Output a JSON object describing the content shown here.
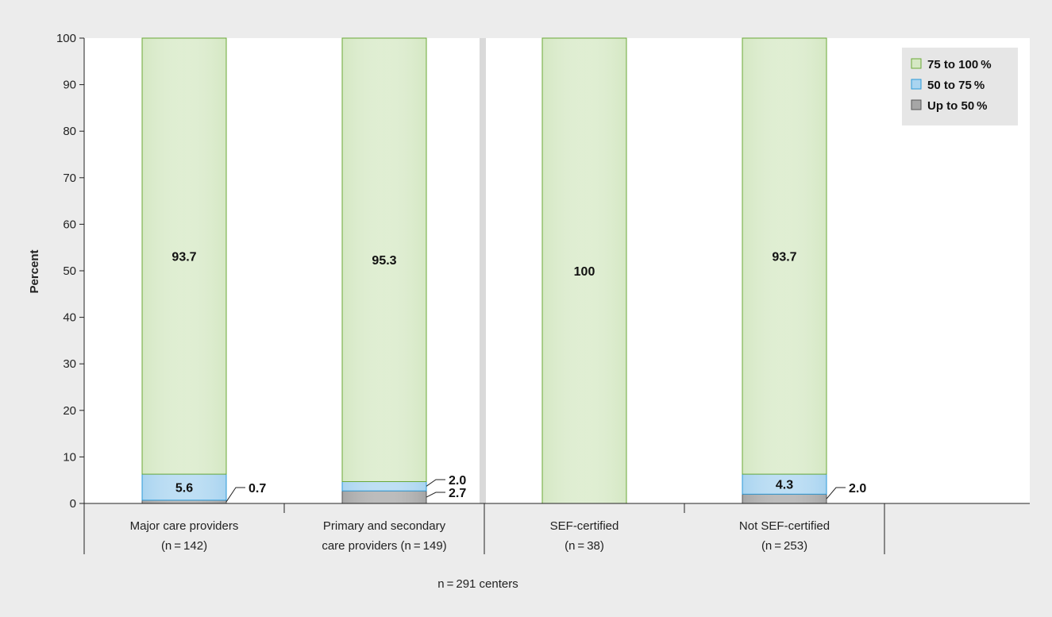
{
  "chart_data": {
    "type": "bar",
    "stacked": true,
    "categories": [
      {
        "line1": "Major care providers",
        "line2": "(n = 142)"
      },
      {
        "line1": "Primary and secondary",
        "line2": "care providers (n = 149)"
      },
      {
        "line1": "SEF-certified",
        "line2": "(n = 38)"
      },
      {
        "line1": "Not SEF-certified",
        "line2": "(n = 253)"
      }
    ],
    "series": [
      {
        "name": "Up to 50%",
        "color": "#a6a6a6",
        "values": [
          0.7,
          2.7,
          0,
          2.0
        ]
      },
      {
        "name": "50 to 75%",
        "color": "#a9d4f0",
        "values": [
          5.6,
          2.0,
          0,
          4.3
        ]
      },
      {
        "name": "75 to 100%",
        "color": "#d5e8c4",
        "values": [
          93.7,
          95.3,
          100,
          93.7
        ]
      }
    ],
    "data_labels": [
      {
        "category": 0,
        "series": 2,
        "text": "93.7",
        "placement": "inside"
      },
      {
        "category": 0,
        "series": 1,
        "text": "5.6",
        "placement": "inside"
      },
      {
        "category": 0,
        "series": 0,
        "text": "0.7",
        "placement": "callout"
      },
      {
        "category": 1,
        "series": 2,
        "text": "95.3",
        "placement": "inside"
      },
      {
        "category": 1,
        "series": 1,
        "text": "2.0",
        "placement": "callout"
      },
      {
        "category": 1,
        "series": 0,
        "text": "2.7",
        "placement": "callout"
      },
      {
        "category": 2,
        "series": 2,
        "text": "100",
        "placement": "inside"
      },
      {
        "category": 3,
        "series": 2,
        "text": "93.7",
        "placement": "inside"
      },
      {
        "category": 3,
        "series": 1,
        "text": "4.3",
        "placement": "inside"
      },
      {
        "category": 3,
        "series": 0,
        "text": "2.0",
        "placement": "callout"
      }
    ],
    "legend_labels": [
      "75 to 100 %",
      "50 to 75 %",
      "Up to 50 %"
    ],
    "legend_series_order": [
      2,
      1,
      0
    ],
    "legend_position": "top-right",
    "ylabel": "Percent",
    "ylim": [
      0,
      100
    ],
    "yticks": [
      0,
      10,
      20,
      30,
      40,
      50,
      60,
      70,
      80,
      90,
      100
    ],
    "footnote": "n = 291 centers",
    "grid": false,
    "panels": [
      [
        0,
        1
      ],
      [
        2,
        3
      ]
    ]
  }
}
